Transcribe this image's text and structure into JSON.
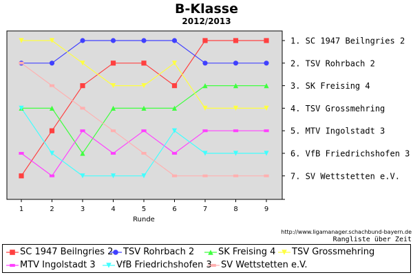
{
  "chart_data": {
    "type": "line",
    "title": "B-Klasse",
    "subtitle": "2012/2013",
    "xlabel": "Runde",
    "ylabel": "",
    "x": [
      1,
      2,
      3,
      4,
      5,
      6,
      7,
      8,
      9
    ],
    "ylim": [
      1,
      7
    ],
    "y_inverted": true,
    "grid": false,
    "right_tick_labels": [
      "1. SC 1947 Beilngries 2",
      "2. TSV Rohrbach 2",
      "3. SK Freising 4",
      "4. TSV Grossmehring",
      "5. MTV Ingolstadt 3",
      "6. VfB Friedrichshofen 3",
      "7. SV Wettstetten e.V."
    ],
    "series": [
      {
        "name": "SC 1947 Beilngries 2",
        "color": "#ff4040",
        "marker": "square",
        "values": [
          7,
          5,
          3,
          2,
          2,
          3,
          1,
          1,
          1
        ]
      },
      {
        "name": "TSV Rohrbach 2",
        "color": "#4040ff",
        "marker": "circle",
        "values": [
          2,
          2,
          1,
          1,
          1,
          1,
          2,
          2,
          2
        ]
      },
      {
        "name": "SK Freising 4",
        "color": "#40ff40",
        "marker": "triangle-up",
        "values": [
          4,
          4,
          6,
          4,
          4,
          4,
          3,
          3,
          3
        ]
      },
      {
        "name": "TSV Grossmehring",
        "color": "#ffff40",
        "marker": "triangle-down",
        "values": [
          1,
          1,
          2,
          3,
          3,
          2,
          4,
          4,
          4
        ]
      },
      {
        "name": "MTV Ingolstadt 3",
        "color": "#ff40ff",
        "marker": "hbar",
        "values": [
          6,
          7,
          5,
          6,
          5,
          6,
          5,
          5,
          5
        ]
      },
      {
        "name": "VfB Friedrichshofen 3",
        "color": "#40ffff",
        "marker": "triangle-down",
        "values": [
          4,
          6,
          7,
          7,
          7,
          5,
          6,
          6,
          6
        ]
      },
      {
        "name": "SV Wettstetten e.V.",
        "color": "#ffb0b0",
        "marker": "hbar",
        "values": [
          2,
          3,
          4,
          5,
          6,
          7,
          7,
          7,
          7
        ]
      }
    ],
    "legend": "bottom",
    "source_text": "http://www.ligamanager.schachbund-bayern.de",
    "caption_text": "Rangliste über Zeit"
  }
}
